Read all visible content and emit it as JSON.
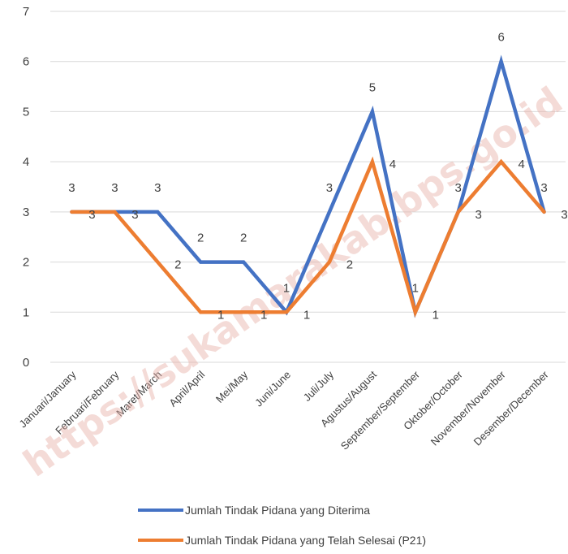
{
  "watermark": "https://sukamarakab.bps.go.id",
  "chart_data": {
    "type": "line",
    "categories": [
      "Januari/January",
      "Februari/February",
      "Maret/March",
      "April/April",
      "Mei/May",
      "Juni/June",
      "Juli/July",
      "Agustus/August",
      "September/September",
      "Oktober/October",
      "November/November",
      "Desember/December"
    ],
    "ylim": [
      0,
      7
    ],
    "yticks": [
      0,
      1,
      2,
      3,
      4,
      5,
      6,
      7
    ],
    "grid": true,
    "legend_position": "bottom",
    "series": [
      {
        "name": "Jumlah Tindak Pidana yang Diterima",
        "color": "#4472c4",
        "values": [
          3,
          3,
          3,
          2,
          2,
          1,
          3,
          5,
          1,
          3,
          6,
          3
        ]
      },
      {
        "name": "Jumlah Tindak Pidana yang Telah Selesai (P21)",
        "color": "#ed7d31",
        "values": [
          3,
          3,
          2,
          1,
          1,
          1,
          2,
          4,
          1,
          3,
          4,
          3
        ]
      }
    ]
  }
}
